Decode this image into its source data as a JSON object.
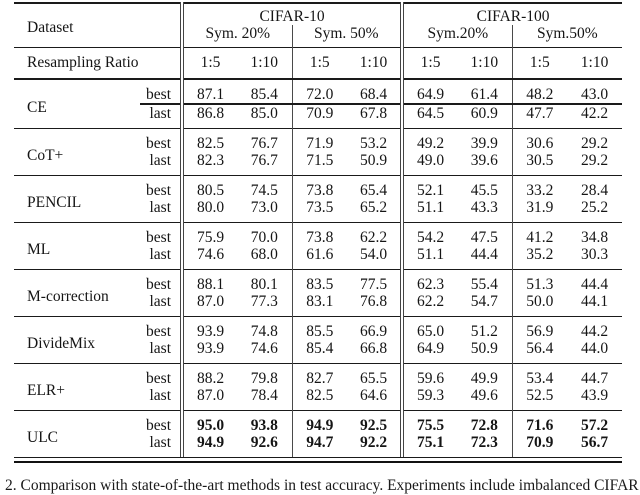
{
  "table": {
    "header": {
      "dataset_label": "Dataset",
      "groups": [
        {
          "name": "CIFAR-10",
          "subgroups": [
            "Sym. 20%",
            "Sym. 50%"
          ]
        },
        {
          "name": "CIFAR-100",
          "subgroups": [
            "Sym.20%",
            "Sym.50%"
          ]
        }
      ],
      "resampling_label": "Resampling Ratio",
      "ratios": [
        "1:5",
        "1:10",
        "1:5",
        "1:10",
        "1:5",
        "1:10",
        "1:5",
        "1:10"
      ]
    },
    "row_sublabels": [
      "best",
      "last"
    ],
    "methods": [
      {
        "name": "CE",
        "bold": false,
        "best": [
          "87.1",
          "85.4",
          "72.0",
          "68.4",
          "64.9",
          "61.4",
          "48.2",
          "43.0"
        ],
        "last": [
          "86.8",
          "85.0",
          "70.9",
          "67.8",
          "64.5",
          "60.9",
          "47.7",
          "42.2"
        ]
      },
      {
        "name": "CoT+",
        "bold": false,
        "best": [
          "82.5",
          "76.7",
          "71.9",
          "53.2",
          "49.2",
          "39.9",
          "30.6",
          "29.2"
        ],
        "last": [
          "82.3",
          "76.7",
          "71.5",
          "50.9",
          "49.0",
          "39.6",
          "30.5",
          "29.2"
        ]
      },
      {
        "name": "PENCIL",
        "bold": false,
        "best": [
          "80.5",
          "74.5",
          "73.8",
          "65.4",
          "52.1",
          "45.5",
          "33.2",
          "28.4"
        ],
        "last": [
          "80.0",
          "73.0",
          "73.5",
          "65.2",
          "51.1",
          "43.3",
          "31.9",
          "25.2"
        ]
      },
      {
        "name": "ML",
        "bold": false,
        "best": [
          "75.9",
          "70.0",
          "73.8",
          "62.2",
          "54.2",
          "47.5",
          "41.2",
          "34.8"
        ],
        "last": [
          "74.6",
          "68.0",
          "61.6",
          "54.0",
          "51.1",
          "44.4",
          "35.2",
          "30.3"
        ]
      },
      {
        "name": "M-correction",
        "bold": false,
        "best": [
          "88.1",
          "80.1",
          "83.5",
          "77.5",
          "62.3",
          "55.4",
          "51.3",
          "44.4"
        ],
        "last": [
          "87.0",
          "77.3",
          "83.1",
          "76.8",
          "62.2",
          "54.7",
          "50.0",
          "44.1"
        ]
      },
      {
        "name": "DivideMix",
        "bold": false,
        "best": [
          "93.9",
          "74.8",
          "85.5",
          "66.9",
          "65.0",
          "51.2",
          "56.9",
          "44.2"
        ],
        "last": [
          "93.9",
          "74.6",
          "85.4",
          "66.8",
          "64.9",
          "50.9",
          "56.4",
          "44.0"
        ]
      },
      {
        "name": "ELR+",
        "bold": false,
        "best": [
          "88.2",
          "79.8",
          "82.7",
          "65.5",
          "59.6",
          "49.9",
          "53.4",
          "44.7"
        ],
        "last": [
          "87.0",
          "78.4",
          "82.5",
          "64.6",
          "59.3",
          "49.6",
          "52.5",
          "43.9"
        ]
      },
      {
        "name": "ULC",
        "bold": true,
        "best": [
          "95.0",
          "93.8",
          "94.9",
          "92.5",
          "75.5",
          "72.8",
          "71.6",
          "57.2"
        ],
        "last": [
          "94.9",
          "92.6",
          "94.7",
          "92.2",
          "75.1",
          "72.3",
          "70.9",
          "56.7"
        ]
      }
    ]
  },
  "caption": "2. Comparison with state-of-the-art methods in test accuracy. Experiments include imbalanced CIFAR"
}
